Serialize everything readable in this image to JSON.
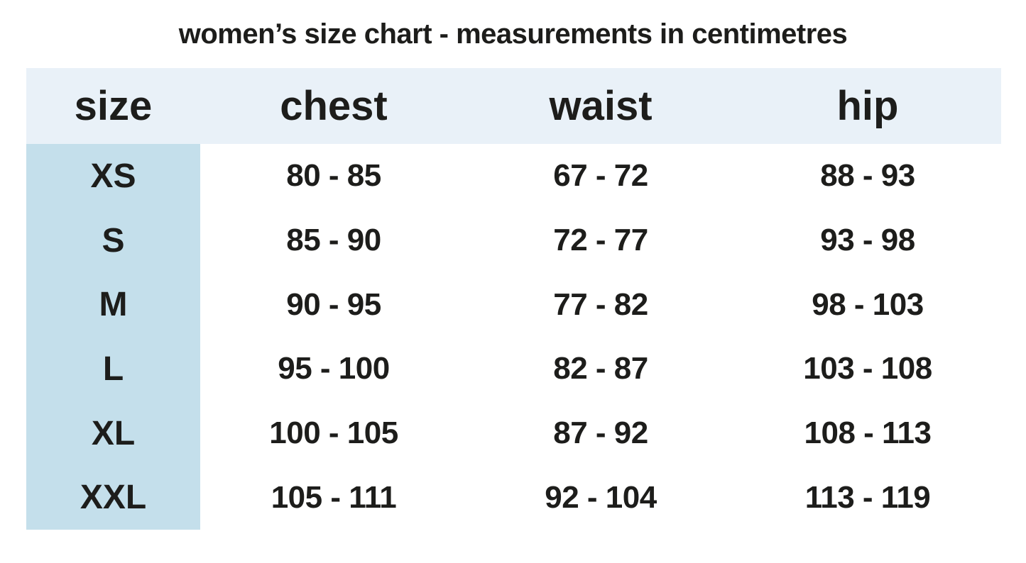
{
  "title": "women’s size chart - measurements in centimetres",
  "colors": {
    "header_bg": "#e9f1f8",
    "size_column_bg": "#c4dfeb",
    "page_bg": "#ffffff",
    "text": "#1d1d1b"
  },
  "chart_data": {
    "type": "table",
    "title": "women’s size chart - measurements in centimetres",
    "columns": [
      "size",
      "chest",
      "waist",
      "hip"
    ],
    "rows": [
      [
        "XS",
        "80 - 85",
        "67 - 72",
        "88 - 93"
      ],
      [
        "S",
        "85 - 90",
        "72 - 77",
        "93 - 98"
      ],
      [
        "M",
        "90 - 95",
        "77 - 82",
        "98 - 103"
      ],
      [
        "L",
        "95 - 100",
        "82 - 87",
        "103 - 108"
      ],
      [
        "XL",
        "100 - 105",
        "87 - 92",
        "108 - 113"
      ],
      [
        "XXL",
        "105 - 111",
        "92 - 104",
        "113 - 119"
      ]
    ],
    "units": "centimetres"
  }
}
